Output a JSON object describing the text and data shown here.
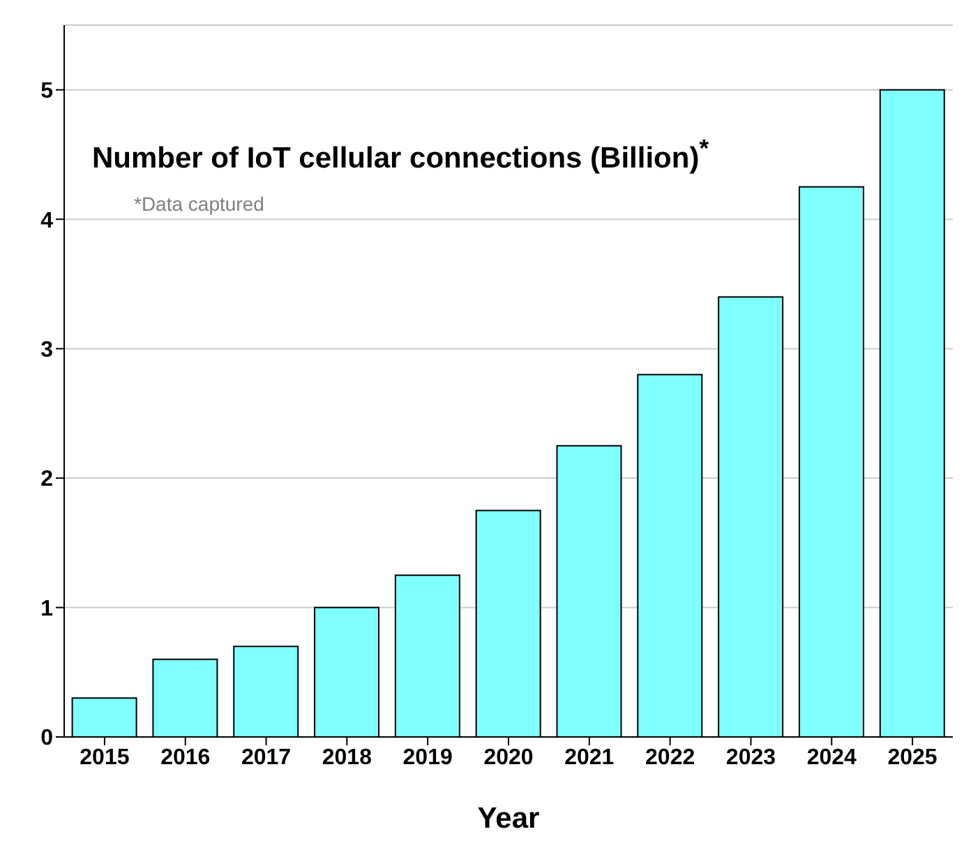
{
  "chart_data": {
    "type": "bar",
    "title": "Number of IoT cellular connections (Billion)$^{*}$",
    "annotations": [
      "*Data captured"
    ],
    "xlabel": "Year",
    "categories": [
      "2015",
      "2016",
      "2017",
      "2018",
      "2019",
      "2020",
      "2021",
      "2022",
      "2023",
      "2024",
      "2025"
    ],
    "values": [
      0.3,
      0.6,
      0.7,
      1.0,
      1.25,
      1.75,
      2.25,
      2.8,
      3.4,
      4.25,
      5.0
    ],
    "color": "#80ffff",
    "ylim": [
      0,
      5.5
    ],
    "yticks": [
      0,
      1,
      2,
      3,
      4,
      5
    ],
    "grid": "y"
  }
}
